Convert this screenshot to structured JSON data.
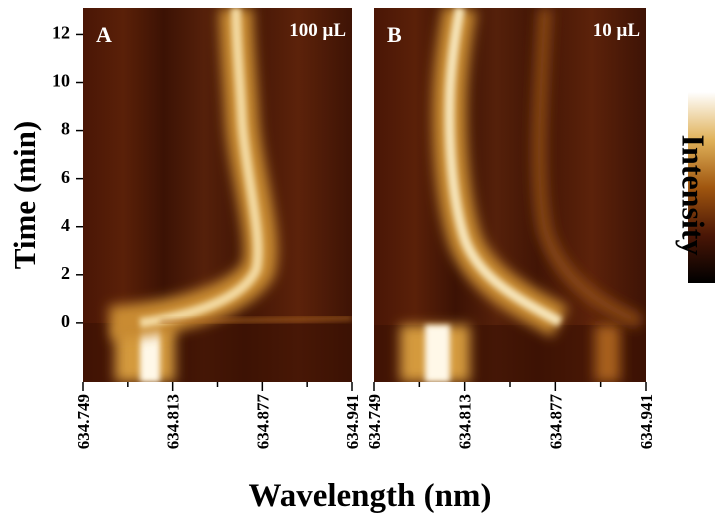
{
  "y_axis_label": "Time (min)",
  "x_axis_label": "Wavelength (nm)",
  "colorbar_label": "Intensity",
  "chart_data": [
    {
      "type": "heatmap",
      "panel_label": "A",
      "annotation": "100 μL",
      "xlim": [
        634.749,
        634.941
      ],
      "xticks": [
        634.749,
        634.813,
        634.877,
        634.941
      ],
      "xminorticks": [
        634.781,
        634.845,
        634.909
      ],
      "ylim": [
        -2.46,
        13.1
      ],
      "yticks": [
        0,
        2,
        4,
        6,
        8,
        10,
        12
      ]
    },
    {
      "type": "heatmap",
      "panel_label": "B",
      "annotation": "10 μL",
      "xlim": [
        634.749,
        634.941
      ],
      "xticks": [
        634.749,
        634.813,
        634.877,
        634.941
      ],
      "xminorticks": [
        634.781,
        634.845,
        634.909
      ]
    }
  ]
}
